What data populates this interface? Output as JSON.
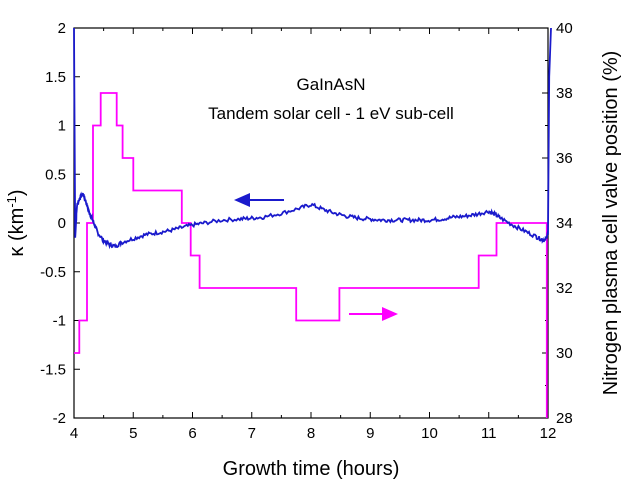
{
  "chart_data": {
    "type": "line",
    "annotations": [
      "GaInAsN",
      "Tandem solar cell - 1 eV sub-cell"
    ],
    "xlabel": "Growth time (hours)",
    "ylabel_left": "κ (km",
    "ylabel_left_sup": "-1",
    "ylabel_left_end": ")",
    "ylabel_right": "Nitrogen plasma cell valve position (%)",
    "xlim": [
      4,
      12
    ],
    "ylim_left": [
      -2,
      2
    ],
    "ylim_right": [
      28,
      40
    ],
    "x_ticks": [
      "4",
      "5",
      "6",
      "7",
      "8",
      "9",
      "10",
      "11",
      "12"
    ],
    "y_left_ticks": [
      "2",
      "1.5",
      "1",
      "0.5",
      "0",
      "-0.5",
      "-1",
      "-1.5",
      "-2"
    ],
    "y_right_ticks": [
      "40",
      "38",
      "36",
      "34",
      "32",
      "30",
      "28"
    ],
    "colors": {
      "curvature": "#1a1acc",
      "valve": "#ff00ff"
    },
    "series": [
      {
        "axis": "left",
        "x": [
          4.0,
          4.02,
          4.05,
          4.1,
          4.15,
          4.2,
          4.25,
          4.3,
          4.35,
          4.4,
          4.5,
          4.6,
          4.7,
          4.8,
          5.0,
          5.2,
          5.4,
          5.6,
          5.8,
          6.0,
          6.2,
          6.5,
          6.8,
          7.0,
          7.2,
          7.5,
          7.8,
          8.0,
          8.2,
          8.4,
          8.6,
          8.8,
          9.0,
          9.2,
          9.4,
          9.6,
          9.8,
          10.0,
          10.2,
          10.4,
          10.6,
          10.8,
          11.0,
          11.1,
          11.2,
          11.4,
          11.6,
          11.8,
          11.9,
          11.95,
          12.0,
          12.02,
          12.05
        ],
        "y": [
          2.0,
          -0.15,
          0.18,
          0.26,
          0.3,
          0.22,
          0.12,
          0.05,
          -0.02,
          -0.1,
          -0.18,
          -0.22,
          -0.24,
          -0.2,
          -0.16,
          -0.12,
          -0.1,
          -0.08,
          -0.05,
          -0.02,
          0.0,
          0.03,
          0.04,
          0.05,
          0.06,
          0.1,
          0.15,
          0.19,
          0.14,
          0.1,
          0.07,
          0.05,
          0.04,
          0.03,
          0.03,
          0.03,
          0.03,
          0.03,
          0.04,
          0.06,
          0.07,
          0.09,
          0.12,
          0.09,
          0.05,
          -0.02,
          -0.08,
          -0.14,
          -0.17,
          -0.18,
          -0.1,
          1.5,
          2.0
        ]
      },
      {
        "axis": "right",
        "x": [
          4.0,
          4.09,
          4.09,
          4.22,
          4.22,
          4.32,
          4.32,
          4.45,
          4.45,
          4.72,
          4.72,
          4.82,
          4.82,
          5.0,
          5.0,
          5.82,
          5.82,
          5.97,
          5.97,
          6.12,
          6.12,
          7.75,
          7.75,
          8.48,
          8.48,
          10.83,
          10.83,
          11.13,
          11.13,
          11.98,
          11.98
        ],
        "y": [
          30,
          30,
          31,
          31,
          34,
          34,
          37,
          37,
          38,
          38,
          37,
          37,
          36,
          36,
          35,
          35,
          34,
          34,
          33,
          33,
          32,
          32,
          31,
          31,
          32,
          32,
          33,
          33,
          34,
          34,
          28
        ]
      }
    ]
  }
}
